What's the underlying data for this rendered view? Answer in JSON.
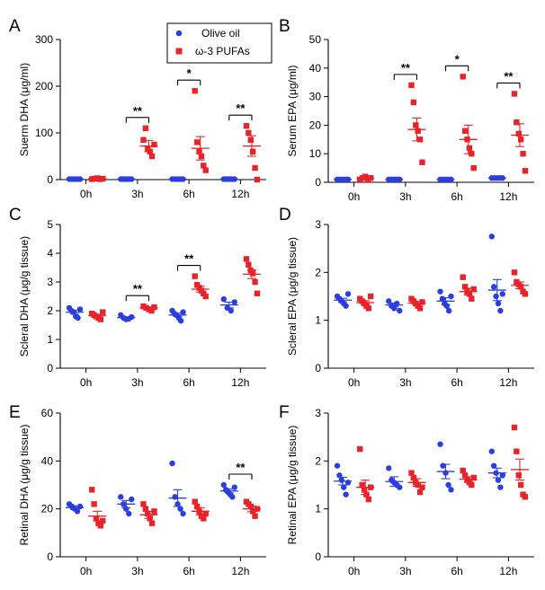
{
  "colors": {
    "olive": "#2b3fe0",
    "omega": "#e8232a",
    "axis": "#000000"
  },
  "legend": {
    "olive_label": "Olive oil",
    "omega_label": "ω-3 PUFAs"
  },
  "chart_data": [
    {
      "id": "A",
      "type": "scatter",
      "letter": "A",
      "ylabel": "Suerm DHA (μg/ml)",
      "ylim": [
        0,
        300
      ],
      "yticks": [
        0,
        100,
        200,
        300
      ],
      "categories": [
        "0h",
        "3h",
        "6h",
        "12h"
      ],
      "series": [
        {
          "name": "Olive oil",
          "points": [
            [
              1,
              1,
              1,
              1,
              1
            ],
            [
              1,
              1,
              1,
              1,
              1
            ],
            [
              1,
              1,
              1,
              1,
              1
            ],
            [
              1,
              1,
              1,
              1,
              1
            ]
          ],
          "mean": [
            1,
            1,
            1,
            1
          ],
          "sem": [
            0.5,
            0.5,
            0.5,
            0.5
          ]
        },
        {
          "name": "ω-3 PUFAs",
          "points": [
            [
              1,
              2,
              3,
              1,
              2
            ],
            [
              85,
              110,
              65,
              60,
              50,
              75
            ],
            [
              190,
              80,
              60,
              50,
              30,
              20
            ],
            [
              115,
              100,
              85,
              60,
              25,
              0
            ]
          ],
          "mean": [
            2,
            72,
            67,
            72
          ],
          "sem": [
            1,
            12,
            25,
            22
          ]
        }
      ],
      "significance": [
        {
          "category": "3h",
          "label": "**"
        },
        {
          "category": "6h",
          "label": "*"
        },
        {
          "category": "12h",
          "label": "**"
        }
      ]
    },
    {
      "id": "B",
      "type": "scatter",
      "letter": "B",
      "ylabel": "Serum EPA (μg/ml)",
      "ylim": [
        0,
        50
      ],
      "yticks": [
        0,
        10,
        20,
        30,
        40,
        50
      ],
      "categories": [
        "0h",
        "3h",
        "6h",
        "12h"
      ],
      "series": [
        {
          "name": "Olive oil",
          "points": [
            [
              1,
              1,
              1,
              1,
              1
            ],
            [
              1,
              1,
              1,
              1,
              1
            ],
            [
              1,
              1,
              1,
              1,
              1
            ],
            [
              1.5,
              1.5,
              1.5,
              1.5,
              1.5
            ]
          ],
          "mean": [
            1,
            1,
            1,
            1.5
          ],
          "sem": [
            0.2,
            0.2,
            0.2,
            0.2
          ]
        },
        {
          "name": "ω-3 PUFAs",
          "points": [
            [
              1,
              1.5,
              2,
              1,
              1.5
            ],
            [
              34,
              28,
              20,
              18,
              15,
              7
            ],
            [
              37,
              18,
              15,
              12,
              10,
              5
            ],
            [
              31,
              21,
              17,
              15,
              10,
              4
            ]
          ],
          "mean": [
            1.5,
            18.5,
            15,
            16.5
          ],
          "sem": [
            0.5,
            4,
            5,
            4
          ]
        }
      ],
      "significance": [
        {
          "category": "3h",
          "label": "**"
        },
        {
          "category": "6h",
          "label": "*"
        },
        {
          "category": "12h",
          "label": "**"
        }
      ]
    },
    {
      "id": "C",
      "type": "scatter",
      "letter": "C",
      "ylabel": "Scleral DHA (μg/g tissue)",
      "ylim": [
        0,
        5
      ],
      "yticks": [
        0,
        1,
        2,
        3,
        4,
        5
      ],
      "categories": [
        "0h",
        "3h",
        "6h",
        "12h"
      ],
      "series": [
        {
          "name": "Olive oil",
          "points": [
            [
              2.1,
              2.0,
              1.95,
              1.8,
              1.75,
              2.05
            ],
            [
              1.85,
              1.75,
              1.7,
              1.72,
              1.78
            ],
            [
              2.0,
              1.9,
              1.85,
              1.75,
              1.65,
              1.95
            ],
            [
              2.4,
              2.1,
              2.0,
              2.3
            ]
          ],
          "mean": [
            1.95,
            1.76,
            1.85,
            2.2
          ],
          "sem": [
            0.07,
            0.03,
            0.06,
            0.1
          ]
        },
        {
          "name": "ω-3 PUFAs",
          "points": [
            [
              1.9,
              1.85,
              1.8,
              1.75,
              1.7,
              1.95
            ],
            [
              2.15,
              2.1,
              2.05,
              2.0,
              2.12
            ],
            [
              3.2,
              2.9,
              2.8,
              2.7,
              2.6,
              2.5
            ],
            [
              3.8,
              3.6,
              3.4,
              3.3,
              3.0,
              2.6
            ]
          ],
          "mean": [
            1.83,
            2.1,
            2.75,
            3.27
          ],
          "sem": [
            0.04,
            0.03,
            0.1,
            0.15
          ]
        }
      ],
      "significance": [
        {
          "category": "3h",
          "label": "**"
        },
        {
          "category": "6h",
          "label": "**"
        }
      ]
    },
    {
      "id": "D",
      "type": "scatter",
      "letter": "D",
      "ylabel": "Scleral EPA (μg/g tissue)",
      "ylim": [
        0,
        3
      ],
      "yticks": [
        0,
        1,
        2,
        3
      ],
      "categories": [
        "0h",
        "3h",
        "6h",
        "12h"
      ],
      "series": [
        {
          "name": "Olive oil",
          "points": [
            [
              1.5,
              1.45,
              1.4,
              1.35,
              1.3,
              1.55
            ],
            [
              1.4,
              1.3,
              1.25,
              1.35,
              1.2
            ],
            [
              1.6,
              1.45,
              1.35,
              1.3,
              1.2,
              1.5
            ],
            [
              2.75,
              1.7,
              1.5,
              1.35,
              1.2,
              1.55
            ]
          ],
          "mean": [
            1.42,
            1.32,
            1.4,
            1.63
          ],
          "sem": [
            0.04,
            0.04,
            0.07,
            0.22
          ]
        },
        {
          "name": "ω-3 PUFAs",
          "points": [
            [
              1.45,
              1.4,
              1.35,
              1.3,
              1.25,
              1.5
            ],
            [
              1.45,
              1.4,
              1.35,
              1.3,
              1.25,
              1.38
            ],
            [
              1.9,
              1.7,
              1.6,
              1.55,
              1.45,
              1.65
            ],
            [
              2.0,
              1.8,
              1.75,
              1.7,
              1.6,
              1.55
            ]
          ],
          "mean": [
            1.37,
            1.36,
            1.6,
            1.73
          ],
          "sem": [
            0.04,
            0.03,
            0.07,
            0.07
          ]
        }
      ],
      "significance": []
    },
    {
      "id": "E",
      "type": "scatter",
      "letter": "E",
      "ylabel": "Retinal DHA (μg/g tissue)",
      "ylim": [
        0,
        60
      ],
      "yticks": [
        0,
        20,
        40,
        60
      ],
      "categories": [
        "0h",
        "3h",
        "6h",
        "12h"
      ],
      "series": [
        {
          "name": "Olive oil",
          "points": [
            [
              22,
              21,
              20,
              19,
              21
            ],
            [
              25,
              22,
              20,
              18,
              24
            ],
            [
              39,
              25,
              22,
              20,
              18
            ],
            [
              30,
              28,
              27,
              26,
              25,
              29
            ]
          ],
          "mean": [
            20.5,
            22,
            24.5,
            27.5
          ],
          "sem": [
            0.8,
            1.5,
            3.5,
            0.8
          ]
        },
        {
          "name": "ω-3 PUFAs",
          "points": [
            [
              28,
              22,
              16,
              14,
              13,
              15
            ],
            [
              22,
              20,
              18,
              16,
              14,
              19
            ],
            [
              23,
              21,
              19,
              17,
              16,
              18
            ],
            [
              23,
              22,
              21,
              19,
              17,
              20
            ]
          ],
          "mean": [
            17,
            17.5,
            19,
            20
          ],
          "sem": [
            2,
            1.5,
            1.5,
            1.2
          ]
        }
      ],
      "significance": [
        {
          "category": "12h",
          "label": "**"
        }
      ]
    },
    {
      "id": "F",
      "type": "scatter",
      "letter": "F",
      "ylabel": "Retinal EPA (μg/g tissue)",
      "ylim": [
        0,
        3
      ],
      "yticks": [
        0,
        1,
        2,
        3
      ],
      "categories": [
        "0h",
        "3h",
        "6h",
        "12h"
      ],
      "series": [
        {
          "name": "Olive oil",
          "points": [
            [
              1.9,
              1.7,
              1.6,
              1.45,
              1.3,
              1.55
            ],
            [
              1.85,
              1.6,
              1.55,
              1.5,
              1.45
            ],
            [
              2.35,
              1.9,
              1.75,
              1.5,
              1.4
            ],
            [
              2.2,
              1.9,
              1.75,
              1.6,
              1.45,
              1.7
            ]
          ],
          "mean": [
            1.58,
            1.57,
            1.78,
            1.75
          ],
          "sem": [
            0.08,
            0.1,
            0.15,
            0.1
          ]
        },
        {
          "name": "ω-3 PUFAs",
          "points": [
            [
              2.25,
              1.5,
              1.4,
              1.3,
              1.2,
              1.45
            ],
            [
              1.75,
              1.65,
              1.55,
              1.5,
              1.35,
              1.45
            ],
            [
              1.8,
              1.7,
              1.6,
              1.55,
              1.5,
              1.65
            ],
            [
              2.7,
              2.2,
              1.7,
              1.5,
              1.3,
              1.25
            ]
          ],
          "mean": [
            1.45,
            1.55,
            1.62,
            1.82
          ],
          "sem": [
            0.15,
            0.08,
            0.05,
            0.22
          ]
        }
      ],
      "significance": []
    }
  ]
}
